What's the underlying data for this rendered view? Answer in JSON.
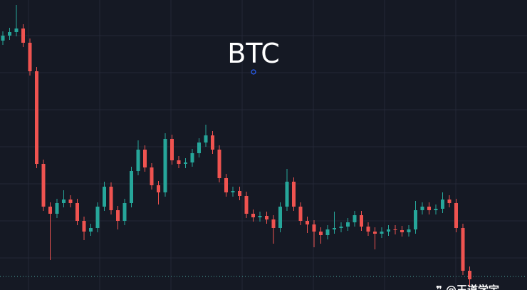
{
  "chart_data": {
    "type": "candlestick",
    "title": "BTC",
    "watermark": "❞ @王道学宇",
    "ylim": [
      0,
      407
    ],
    "up_color": "#26a69a",
    "down_color": "#ef5350",
    "grid": true,
    "open": [
      350,
      357,
      362,
      367,
      347,
      307,
      177,
      117,
      107,
      122,
      127,
      122,
      97,
      82,
      87,
      117,
      145,
      112,
      97,
      122,
      167,
      197,
      172,
      147,
      137,
      212,
      182,
      177,
      179,
      192,
      207,
      217,
      197,
      157,
      137,
      139,
      132,
      107,
      102,
      104,
      99,
      87,
      117,
      152,
      117,
      97,
      92,
      82,
      77,
      85,
      87,
      89,
      95,
      105,
      89,
      82,
      79,
      82,
      85,
      84,
      81,
      85,
      112,
      117,
      112,
      114,
      127,
      122,
      87,
      27
    ],
    "high": [
      363,
      368,
      400,
      373,
      353,
      313,
      183,
      123,
      128,
      140,
      133,
      128,
      103,
      93,
      123,
      152,
      151,
      118,
      128,
      173,
      210,
      203,
      178,
      153,
      220,
      218,
      188,
      185,
      198,
      213,
      232,
      223,
      203,
      163,
      145,
      145,
      138,
      113,
      110,
      110,
      105,
      123,
      170,
      158,
      123,
      103,
      98,
      88,
      91,
      110,
      95,
      101,
      111,
      111,
      95,
      88,
      88,
      91,
      91,
      90,
      91,
      125,
      123,
      123,
      120,
      137,
      133,
      128,
      93,
      33
    ],
    "low": [
      344,
      351,
      356,
      341,
      301,
      171,
      111,
      42,
      101,
      116,
      116,
      91,
      70,
      76,
      81,
      111,
      106,
      85,
      91,
      116,
      161,
      166,
      141,
      120,
      131,
      176,
      171,
      171,
      173,
      186,
      201,
      191,
      151,
      131,
      131,
      126,
      101,
      96,
      96,
      93,
      65,
      81,
      111,
      111,
      91,
      80,
      60,
      65,
      71,
      79,
      81,
      83,
      89,
      83,
      76,
      57,
      73,
      76,
      78,
      75,
      75,
      79,
      106,
      106,
      106,
      108,
      116,
      81,
      21,
      5
    ],
    "close": [
      357,
      362,
      367,
      347,
      307,
      177,
      117,
      107,
      122,
      127,
      122,
      97,
      82,
      87,
      117,
      145,
      112,
      97,
      122,
      167,
      197,
      172,
      147,
      137,
      212,
      182,
      177,
      179,
      192,
      207,
      217,
      197,
      157,
      137,
      139,
      132,
      107,
      102,
      104,
      99,
      87,
      117,
      152,
      117,
      97,
      92,
      82,
      77,
      85,
      87,
      89,
      95,
      105,
      89,
      82,
      79,
      82,
      85,
      84,
      81,
      85,
      112,
      117,
      112,
      114,
      127,
      122,
      87,
      27,
      15
    ]
  }
}
